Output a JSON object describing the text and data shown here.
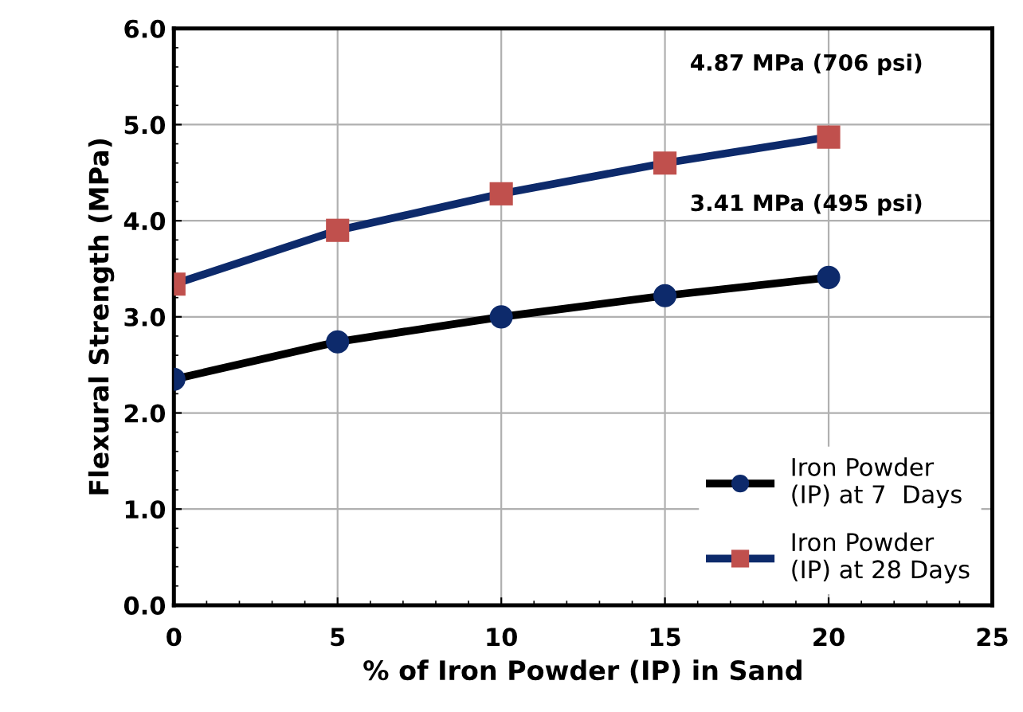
{
  "chart_data": {
    "type": "line",
    "xlabel": "% of Iron Powder (IP) in Sand",
    "ylabel": "Flexural Strength (MPa)",
    "x": [
      0,
      5,
      10,
      15,
      20
    ],
    "series": [
      {
        "name": "Iron Powder\n(IP) at 7  Days",
        "color": "#000000",
        "colors": [
          "#0d2a6b",
          "#0d2a6b",
          "#0d2a6b",
          "#0d2a6b",
          "#0d2a6b"
        ],
        "marker": "circle",
        "values": [
          2.35,
          2.74,
          3.0,
          3.22,
          3.41
        ]
      },
      {
        "name": "Iron Powder\n(IP) at 28 Days",
        "color": "#0d2a6b",
        "colors": [
          "#c0504d",
          "#c0504d",
          "#c0504d",
          "#c0504d",
          "#c0504d"
        ],
        "marker": "square",
        "values": [
          3.34,
          3.9,
          4.28,
          4.6,
          4.87
        ]
      }
    ],
    "annotations": [
      {
        "text": "4.87 MPa (706 psi)",
        "x": 20,
        "y": 4.87
      },
      {
        "text": "3.41 MPa (495 psi)",
        "x": 20,
        "y": 3.41
      }
    ],
    "xlim": [
      0,
      25
    ],
    "xticks": [
      0,
      5,
      10,
      15,
      20,
      25
    ],
    "ylim": [
      0,
      6
    ],
    "yticks": [
      {
        "value": 0,
        "label": "0.0"
      },
      {
        "value": 1,
        "label": "1.0"
      },
      {
        "value": 2,
        "label": "2.0"
      },
      {
        "value": 3,
        "label": "3.0"
      },
      {
        "value": 4,
        "label": "4.0"
      },
      {
        "value": 5,
        "label": "5.0"
      },
      {
        "value": 6,
        "label": "6.0"
      }
    ],
    "grid": true,
    "legend": "bottom right"
  }
}
